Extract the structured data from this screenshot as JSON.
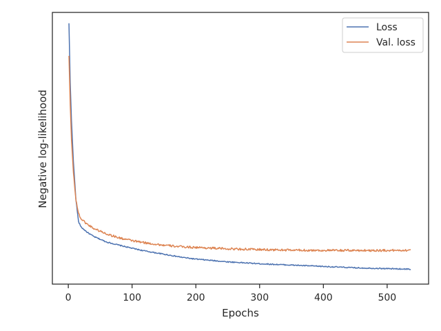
{
  "chart_data": {
    "type": "line",
    "title": "",
    "xlabel": "Epochs",
    "ylabel": "Negative log-likelihood",
    "xlim": [
      -25,
      565
    ],
    "ylim": [
      0.0,
      1.0
    ],
    "xticks": [
      0,
      100,
      200,
      300,
      400,
      500
    ],
    "yticks": [],
    "grid": false,
    "legend_position": "top-right",
    "series": [
      {
        "name": "Loss",
        "color": "#4c72b0",
        "x": [
          1,
          3,
          5,
          8,
          12,
          16,
          20,
          25,
          30,
          40,
          50,
          60,
          80,
          100,
          120,
          150,
          180,
          200,
          250,
          300,
          350,
          400,
          450,
          500,
          537
        ],
        "y": [
          0.96,
          0.74,
          0.6,
          0.45,
          0.31,
          0.23,
          0.21,
          0.2,
          0.19,
          0.175,
          0.165,
          0.155,
          0.143,
          0.132,
          0.122,
          0.11,
          0.098,
          0.092,
          0.082,
          0.075,
          0.07,
          0.065,
          0.06,
          0.057,
          0.055
        ],
        "noise": 0.002
      },
      {
        "name": "Val. loss",
        "color": "#dd8452",
        "x": [
          1,
          3,
          5,
          8,
          12,
          16,
          20,
          25,
          30,
          40,
          50,
          60,
          80,
          100,
          120,
          150,
          180,
          200,
          250,
          300,
          350,
          400,
          450,
          500,
          537
        ],
        "y": [
          0.84,
          0.66,
          0.53,
          0.41,
          0.31,
          0.26,
          0.24,
          0.23,
          0.22,
          0.205,
          0.195,
          0.185,
          0.17,
          0.16,
          0.152,
          0.143,
          0.137,
          0.135,
          0.13,
          0.127,
          0.125,
          0.124,
          0.124,
          0.124,
          0.125
        ],
        "noise": 0.004
      }
    ]
  }
}
